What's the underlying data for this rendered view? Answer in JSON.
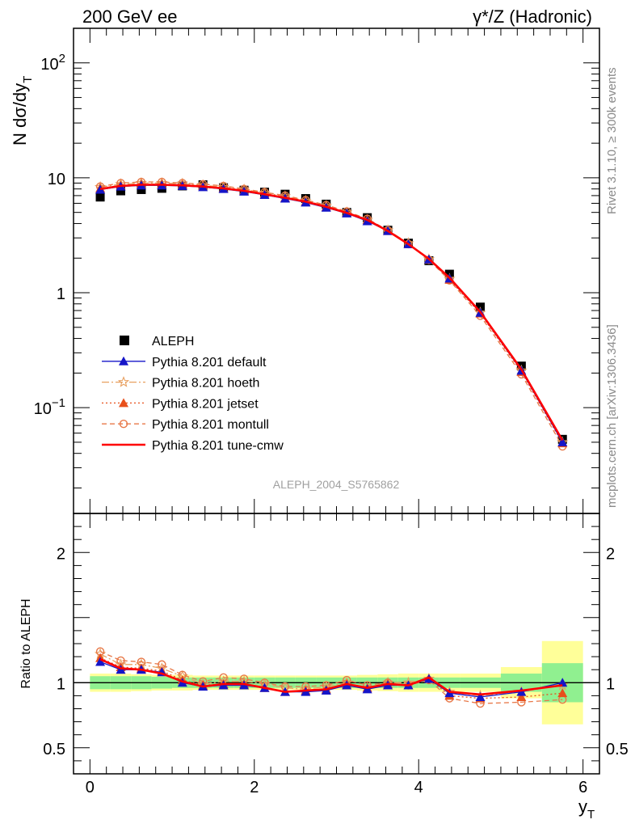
{
  "header": {
    "left_title": "200 GeV ee",
    "right_title": "γ*/Z (Hadronic)"
  },
  "side_text": {
    "rivet": "Rivet 3.1.10, ≥ 300k events",
    "mcplots": "mcplots.cern.ch [arXiv:1306.3436]"
  },
  "watermark": "ALEPH_2004_S5765862",
  "colors": {
    "data": "#000000",
    "default": "#1515c8",
    "hoeth": "#e8a060",
    "jetset": "#e8501c",
    "montull": "#e87848",
    "tunecmw": "#ff0000",
    "band_inner": "#90f090",
    "band_outer": "#ffff99"
  },
  "chart_data": [
    {
      "type": "line",
      "ylabel": "N dσ/dy",
      "ylabel_sub": "T",
      "yscale": "log",
      "ylim": [
        0.012,
        200
      ],
      "xlim": [
        -0.2,
        6.2
      ],
      "y_ticks": [
        {
          "value": 100,
          "label": "10",
          "exp": "2"
        },
        {
          "value": 10,
          "label": "10",
          "exp": ""
        },
        {
          "value": 1,
          "label": "1",
          "exp": ""
        },
        {
          "value": 0.1,
          "label": "10",
          "exp": "−1"
        }
      ],
      "x": [
        0.125,
        0.375,
        0.625,
        0.875,
        1.125,
        1.375,
        1.625,
        1.875,
        2.125,
        2.375,
        2.625,
        2.875,
        3.125,
        3.375,
        3.625,
        3.875,
        4.125,
        4.375,
        4.75,
        5.25,
        5.75
      ],
      "legend": [
        {
          "key": "data",
          "label": "ALEPH"
        },
        {
          "key": "default",
          "label": "Pythia 8.201 default"
        },
        {
          "key": "hoeth",
          "label": "Pythia 8.201 hoeth"
        },
        {
          "key": "jetset",
          "label": "Pythia 8.201 jetset"
        },
        {
          "key": "montull",
          "label": "Pythia 8.201 montull"
        },
        {
          "key": "tunecmw",
          "label": "Pythia 8.201 tune-cmw"
        }
      ],
      "series": [
        {
          "key": "data",
          "name": "ALEPH",
          "values": [
            6.8,
            7.7,
            7.9,
            8.1,
            8.5,
            8.7,
            8.2,
            7.8,
            7.5,
            7.2,
            6.6,
            5.9,
            5.0,
            4.5,
            3.5,
            2.7,
            1.9,
            1.45,
            0.75,
            0.23,
            0.053
          ]
        },
        {
          "key": "default",
          "name": "Pythia 8.201 default",
          "values": [
            7.9,
            8.4,
            8.6,
            8.6,
            8.5,
            8.3,
            8.0,
            7.6,
            7.1,
            6.6,
            6.1,
            5.5,
            4.9,
            4.2,
            3.45,
            2.65,
            1.95,
            1.33,
            0.67,
            0.21,
            0.05
          ]
        },
        {
          "key": "hoeth",
          "name": "Pythia 8.201 hoeth",
          "values": [
            8.3,
            8.8,
            9.0,
            9.0,
            8.9,
            8.6,
            8.3,
            7.9,
            7.4,
            6.9,
            6.3,
            5.7,
            5.0,
            4.3,
            3.5,
            2.7,
            1.95,
            1.32,
            0.67,
            0.21,
            0.05
          ]
        },
        {
          "key": "jetset",
          "name": "Pythia 8.201 jetset",
          "values": [
            8.1,
            8.6,
            8.8,
            8.8,
            8.7,
            8.5,
            8.1,
            7.7,
            7.2,
            6.7,
            6.2,
            5.6,
            4.95,
            4.3,
            3.45,
            2.65,
            1.95,
            1.3,
            0.66,
            0.205,
            0.049
          ]
        },
        {
          "key": "montull",
          "name": "Pythia 8.201 montull",
          "values": [
            8.4,
            9.0,
            9.2,
            9.2,
            9.0,
            8.8,
            8.5,
            8.0,
            7.5,
            7.0,
            6.4,
            5.8,
            5.1,
            4.4,
            3.5,
            2.65,
            1.93,
            1.28,
            0.63,
            0.195,
            0.046
          ]
        },
        {
          "key": "tunecmw",
          "name": "Pythia 8.201 tune-cmw",
          "values": [
            8.0,
            8.5,
            8.7,
            8.7,
            8.6,
            8.4,
            8.1,
            7.7,
            7.2,
            6.7,
            6.2,
            5.6,
            4.95,
            4.3,
            3.45,
            2.65,
            1.97,
            1.35,
            0.68,
            0.215,
            0.052
          ]
        }
      ]
    },
    {
      "type": "line",
      "ylabel": "Ratio to ALEPH",
      "xlabel": "y",
      "xlabel_sub": "T",
      "ylim": [
        0.3,
        2.3
      ],
      "xlim": [
        -0.2,
        6.2
      ],
      "y_ticks": [
        {
          "value": 2,
          "label": "2"
        },
        {
          "value": 1,
          "label": "1"
        },
        {
          "value": 0.5,
          "label": "0.5"
        }
      ],
      "x_ticks": [
        {
          "value": 0,
          "label": "0"
        },
        {
          "value": 2,
          "label": "2"
        },
        {
          "value": 4,
          "label": "4"
        },
        {
          "value": 6,
          "label": "6"
        }
      ],
      "x": [
        0.125,
        0.375,
        0.625,
        0.875,
        1.125,
        1.375,
        1.625,
        1.875,
        2.125,
        2.375,
        2.625,
        2.875,
        3.125,
        3.375,
        3.625,
        3.875,
        4.125,
        4.375,
        4.75,
        5.25,
        5.75
      ],
      "bins": [
        [
          0,
          0.25
        ],
        [
          0.25,
          0.5
        ],
        [
          0.5,
          0.75
        ],
        [
          0.75,
          1.0
        ],
        [
          1.0,
          1.25
        ],
        [
          1.25,
          1.5
        ],
        [
          1.5,
          1.75
        ],
        [
          1.75,
          2.0
        ],
        [
          2.0,
          2.25
        ],
        [
          2.25,
          2.5
        ],
        [
          2.5,
          2.75
        ],
        [
          2.75,
          3.0
        ],
        [
          3.0,
          3.25
        ],
        [
          3.25,
          3.5
        ],
        [
          3.5,
          3.75
        ],
        [
          3.75,
          4.0
        ],
        [
          4.0,
          4.25
        ],
        [
          4.25,
          4.5
        ],
        [
          4.5,
          5.0
        ],
        [
          5.0,
          5.5
        ],
        [
          5.5,
          6.0
        ]
      ],
      "band_inner": [
        0.05,
        0.05,
        0.05,
        0.045,
        0.04,
        0.04,
        0.04,
        0.04,
        0.04,
        0.04,
        0.04,
        0.04,
        0.04,
        0.04,
        0.04,
        0.04,
        0.04,
        0.04,
        0.04,
        0.07,
        0.15
      ],
      "band_outer": [
        0.07,
        0.07,
        0.065,
        0.06,
        0.06,
        0.055,
        0.055,
        0.055,
        0.055,
        0.055,
        0.055,
        0.055,
        0.055,
        0.06,
        0.065,
        0.07,
        0.07,
        0.07,
        0.07,
        0.12,
        0.32
      ],
      "series": [
        {
          "key": "default",
          "name": "Pythia 8.201 default",
          "values": [
            1.16,
            1.1,
            1.1,
            1.08,
            1.0,
            0.97,
            0.98,
            0.98,
            0.96,
            0.93,
            0.93,
            0.94,
            0.98,
            0.95,
            0.98,
            0.98,
            1.03,
            0.92,
            0.89,
            0.93,
            1.0
          ]
        },
        {
          "key": "hoeth",
          "name": "Pythia 8.201 hoeth",
          "values": [
            1.22,
            1.14,
            1.14,
            1.11,
            1.05,
            0.99,
            1.01,
            1.01,
            0.99,
            0.96,
            0.95,
            0.97,
            1.0,
            0.96,
            1.0,
            1.0,
            1.03,
            0.93,
            0.9,
            0.93,
            0.98
          ]
        },
        {
          "key": "jetset",
          "name": "Pythia 8.201 jetset",
          "values": [
            1.19,
            1.12,
            1.11,
            1.09,
            1.02,
            0.98,
            0.99,
            0.99,
            0.96,
            0.93,
            0.94,
            0.95,
            0.99,
            0.96,
            0.99,
            0.98,
            1.03,
            0.9,
            0.88,
            0.89,
            0.92
          ]
        },
        {
          "key": "montull",
          "name": "Pythia 8.201 montull",
          "values": [
            1.24,
            1.17,
            1.16,
            1.14,
            1.06,
            1.01,
            1.04,
            1.03,
            1.0,
            0.97,
            0.97,
            0.98,
            1.02,
            0.98,
            1.0,
            0.98,
            1.02,
            0.88,
            0.84,
            0.85,
            0.87
          ]
        },
        {
          "key": "tunecmw",
          "name": "Pythia 8.201 tune-cmw",
          "values": [
            1.18,
            1.11,
            1.1,
            1.07,
            1.01,
            0.97,
            0.99,
            0.99,
            0.96,
            0.93,
            0.94,
            0.95,
            0.99,
            0.96,
            0.99,
            0.98,
            1.04,
            0.93,
            0.91,
            0.94,
            0.98
          ]
        }
      ]
    }
  ]
}
